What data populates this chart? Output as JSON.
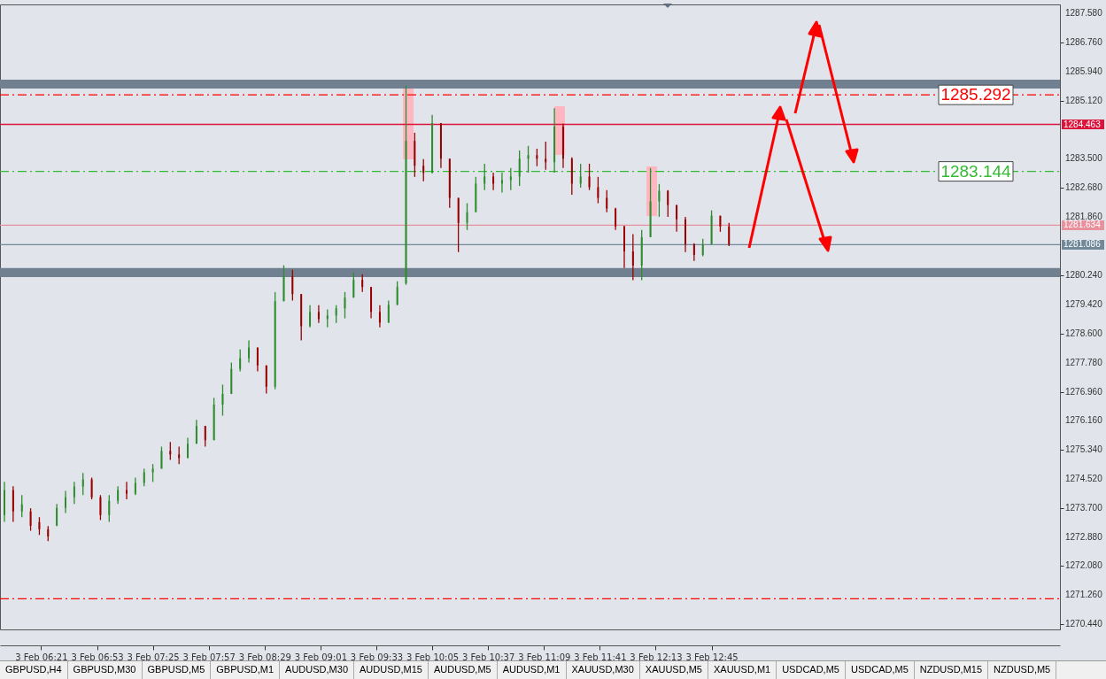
{
  "chart_data": {
    "type": "candlestick",
    "x": [
      "--02-03T06:00",
      "--02-03T06:05",
      "--02-03T06:10",
      "--02-03T06:15",
      "--02-03T06:20",
      "--02-03T06:25",
      "--02-03T06:30",
      "--02-03T06:35",
      "--02-03T06:40",
      "--02-03T06:45",
      "--02-03T06:50",
      "--02-03T06:55",
      "--02-03T07:00",
      "--02-03T07:05",
      "--02-03T07:10",
      "--02-03T07:15",
      "--02-03T07:20",
      "--02-03T07:25",
      "--02-03T07:30",
      "--02-03T07:35",
      "--02-03T07:40",
      "--02-03T07:45",
      "--02-03T07:50",
      "--02-03T07:55",
      "--02-03T08:00",
      "--02-03T08:05",
      "--02-03T08:10",
      "--02-03T08:15",
      "--02-03T08:20",
      "--02-03T08:25",
      "--02-03T08:30",
      "--02-03T08:35",
      "--02-03T08:40",
      "--02-03T08:45",
      "--02-03T08:50",
      "--02-03T08:55",
      "--02-03T09:00",
      "--02-03T09:05",
      "--02-03T09:10",
      "--02-03T09:15",
      "--02-03T09:20",
      "--02-03T09:25",
      "--02-03T09:30",
      "--02-03T09:35",
      "--02-03T09:40",
      "--02-03T09:45",
      "--02-03T09:50",
      "--02-03T09:55",
      "--02-03T10:00",
      "--02-03T10:05",
      "--02-03T10:10",
      "--02-03T10:15",
      "--02-03T10:20",
      "--02-03T10:25",
      "--02-03T10:30",
      "--02-03T10:35",
      "--02-03T10:40",
      "--02-03T10:45",
      "--02-03T10:50",
      "--02-03T10:55",
      "--02-03T11:00",
      "--02-03T11:05",
      "--02-03T11:10",
      "--02-03T11:15",
      "--02-03T11:20",
      "--02-03T11:25",
      "--02-03T11:30",
      "--02-03T11:35",
      "--02-03T11:40",
      "--02-03T11:45",
      "--02-03T11:50",
      "--02-03T11:55",
      "--02-03T12:00",
      "--02-03T12:05",
      "--02-03T12:10",
      "--02-03T12:15",
      "--02-03T12:20",
      "--02-03T12:25",
      "--02-03T12:30",
      "--02-03T12:35",
      "--02-03T12:40",
      "--02-03T12:45",
      "--02-03T12:50",
      "--02-03T12:55"
    ],
    "ohlc": [
      [
        1273.5,
        1274.43,
        1273.31,
        1274.2
      ],
      [
        1274.2,
        1274.31,
        1273.31,
        1273.6
      ],
      [
        1273.6,
        1274.06,
        1273.44,
        1273.8
      ],
      [
        1273.6,
        1273.69,
        1273.06,
        1273.2
      ],
      [
        1273.3,
        1273.44,
        1272.94,
        1273.1
      ],
      [
        1273.1,
        1273.19,
        1272.77,
        1272.9
      ],
      [
        1273.2,
        1273.81,
        1273.19,
        1273.7
      ],
      [
        1273.7,
        1274.18,
        1273.56,
        1274.0
      ],
      [
        1274.0,
        1274.43,
        1273.81,
        1274.3
      ],
      [
        1274.3,
        1274.68,
        1274.06,
        1274.5
      ],
      [
        1274.5,
        1274.55,
        1273.94,
        1274.0
      ],
      [
        1274.0,
        1274.06,
        1273.36,
        1273.5
      ],
      [
        1273.5,
        1274.06,
        1273.31,
        1273.9
      ],
      [
        1273.9,
        1274.31,
        1273.81,
        1274.2
      ],
      [
        1274.2,
        1274.43,
        1273.94,
        1274.1
      ],
      [
        1274.1,
        1274.55,
        1274.06,
        1274.4
      ],
      [
        1274.4,
        1274.8,
        1274.31,
        1274.7
      ],
      [
        1274.7,
        1274.93,
        1274.43,
        1274.8
      ],
      [
        1274.8,
        1275.42,
        1274.8,
        1275.3
      ],
      [
        1275.3,
        1275.55,
        1275.05,
        1275.2
      ],
      [
        1275.2,
        1275.42,
        1274.93,
        1275.1
      ],
      [
        1275.1,
        1275.67,
        1275.1,
        1275.5
      ],
      [
        1275.5,
        1276.17,
        1275.5,
        1276.0
      ],
      [
        1276.0,
        1276.0,
        1275.42,
        1275.6
      ],
      [
        1275.6,
        1276.79,
        1275.6,
        1276.6
      ],
      [
        1276.6,
        1277.16,
        1276.29,
        1276.9
      ],
      [
        1276.9,
        1277.78,
        1276.9,
        1277.6
      ],
      [
        1277.6,
        1278.15,
        1277.53,
        1277.9
      ],
      [
        1277.9,
        1278.4,
        1277.78,
        1278.2
      ],
      [
        1278.2,
        1278.2,
        1277.53,
        1277.7
      ],
      [
        1277.7,
        1277.7,
        1276.91,
        1277.1
      ],
      [
        1277.1,
        1279.76,
        1277.03,
        1279.5
      ],
      [
        1279.5,
        1280.51,
        1279.5,
        1280.2
      ],
      [
        1280.2,
        1280.38,
        1279.52,
        1279.7
      ],
      [
        1279.7,
        1279.7,
        1278.4,
        1278.8
      ],
      [
        1278.8,
        1279.39,
        1278.77,
        1279.2
      ],
      [
        1279.2,
        1279.39,
        1278.89,
        1279.0
      ],
      [
        1279.0,
        1279.27,
        1278.77,
        1279.1
      ],
      [
        1279.1,
        1279.39,
        1278.89,
        1279.3
      ],
      [
        1279.3,
        1279.76,
        1279.02,
        1279.6
      ],
      [
        1279.6,
        1280.31,
        1279.6,
        1280.1
      ],
      [
        1280.1,
        1280.26,
        1279.76,
        1279.9
      ],
      [
        1279.9,
        1279.9,
        1279.02,
        1279.2
      ],
      [
        1279.2,
        1279.39,
        1278.77,
        1278.9
      ],
      [
        1278.9,
        1279.52,
        1278.89,
        1279.4
      ],
      [
        1279.4,
        1280.06,
        1279.39,
        1279.9
      ],
      [
        1280.0,
        1285.55,
        1279.96,
        1284.0
      ],
      [
        1284.0,
        1284.23,
        1282.99,
        1283.3
      ],
      [
        1283.3,
        1283.49,
        1282.87,
        1283.1
      ],
      [
        1283.1,
        1284.73,
        1283.1,
        1284.5
      ],
      [
        1284.5,
        1284.5,
        1283.24,
        1283.5
      ],
      [
        1283.5,
        1283.5,
        1282.12,
        1282.4
      ],
      [
        1282.4,
        1282.4,
        1280.88,
        1281.7
      ],
      [
        1281.7,
        1282.25,
        1281.5,
        1282.0
      ],
      [
        1282.0,
        1282.99,
        1282.0,
        1282.8
      ],
      [
        1282.8,
        1283.36,
        1282.62,
        1283.0
      ],
      [
        1283.0,
        1283.11,
        1282.62,
        1282.8
      ],
      [
        1282.8,
        1283.11,
        1282.55,
        1282.9
      ],
      [
        1282.9,
        1283.24,
        1282.62,
        1283.0
      ],
      [
        1283.0,
        1283.73,
        1282.74,
        1283.5
      ],
      [
        1283.5,
        1283.86,
        1283.11,
        1283.6
      ],
      [
        1283.6,
        1283.78,
        1283.29,
        1283.5
      ],
      [
        1283.5,
        1283.98,
        1283.19,
        1283.4
      ],
      [
        1283.4,
        1284.92,
        1283.11,
        1284.4
      ],
      [
        1284.4,
        1284.48,
        1283.24,
        1283.5
      ],
      [
        1283.5,
        1283.54,
        1282.49,
        1282.8
      ],
      [
        1282.8,
        1283.36,
        1282.69,
        1283.0
      ],
      [
        1283.0,
        1283.36,
        1282.62,
        1282.7
      ],
      [
        1282.7,
        1282.99,
        1282.25,
        1282.4
      ],
      [
        1282.4,
        1282.62,
        1282.0,
        1282.1
      ],
      [
        1282.1,
        1282.12,
        1281.5,
        1281.6
      ],
      [
        1281.6,
        1281.62,
        1280.43,
        1280.9
      ],
      [
        1280.9,
        1281.38,
        1280.09,
        1280.5
      ],
      [
        1280.5,
        1281.5,
        1280.09,
        1281.3
      ],
      [
        1281.3,
        1283.24,
        1281.3,
        1282.3
      ],
      [
        1282.3,
        1282.79,
        1281.87,
        1282.6
      ],
      [
        1282.6,
        1282.62,
        1281.87,
        1282.2
      ],
      [
        1282.2,
        1282.2,
        1281.45,
        1281.8
      ],
      [
        1281.8,
        1281.87,
        1280.88,
        1281.1
      ],
      [
        1281.1,
        1281.13,
        1280.63,
        1280.8
      ],
      [
        1280.8,
        1281.25,
        1280.76,
        1281.1
      ],
      [
        1281.1,
        1282.05,
        1281.1,
        1281.9
      ],
      [
        1281.9,
        1281.9,
        1281.45,
        1281.6
      ],
      [
        1281.6,
        1281.7,
        1281.05,
        1281.1
      ]
    ],
    "colors": [
      "#2e8b2e",
      "#990000",
      "#2e8b2e",
      "#990000",
      "#990000",
      "#990000",
      "#2e8b2e",
      "#2e8b2e",
      "#2e8b2e",
      "#2e8b2e",
      "#990000",
      "#990000",
      "#2e8b2e",
      "#2e8b2e",
      "#990000",
      "#2e8b2e",
      "#2e8b2e",
      "#2e8b2e",
      "#2e8b2e",
      "#990000",
      "#990000",
      "#2e8b2e",
      "#2e8b2e",
      "#990000",
      "#2e8b2e",
      "#2e8b2e",
      "#2e8b2e",
      "#2e8b2e",
      "#2e8b2e",
      "#990000",
      "#990000",
      "#2e8b2e",
      "#2e8b2e",
      "#990000",
      "#990000",
      "#2e8b2e",
      "#990000",
      "#2e8b2e",
      "#2e8b2e",
      "#2e8b2e",
      "#2e8b2e",
      "#990000",
      "#990000",
      "#990000",
      "#2e8b2e",
      "#2e8b2e",
      "#2e8b2e",
      "#990000",
      "#990000",
      "#2e8b2e",
      "#990000",
      "#990000",
      "#990000",
      "#2e8b2e",
      "#2e8b2e",
      "#2e8b2e",
      "#990000",
      "#2e8b2e",
      "#2e8b2e",
      "#2e8b2e",
      "#2e8b2e",
      "#990000",
      "#990000",
      "#2e8b2e",
      "#990000",
      "#990000",
      "#2e8b2e",
      "#990000",
      "#990000",
      "#990000",
      "#990000",
      "#990000",
      "#990000",
      "#2e8b2e",
      "#2e8b2e",
      "#2e8b2e",
      "#990000",
      "#990000",
      "#990000",
      "#990000",
      "#2e8b2e",
      "#2e8b2e",
      "#990000",
      "#990000"
    ],
    "xlim": [
      "--02-03T06:00",
      "--02-03T16:02"
    ],
    "xticks": [
      {
        "value": "--02-03T06:21",
        "label": "3 Feb 06:21"
      },
      {
        "value": "--02-03T06:53",
        "label": "3 Feb 06:53"
      },
      {
        "value": "--02-03T07:25",
        "label": "3 Feb 07:25"
      },
      {
        "value": "--02-03T07:57",
        "label": "3 Feb 07:57"
      },
      {
        "value": "--02-03T08:29",
        "label": "3 Feb 08:29"
      },
      {
        "value": "--02-03T09:01",
        "label": "3 Feb 09:01"
      },
      {
        "value": "--02-03T09:33",
        "label": "3 Feb 09:33"
      },
      {
        "value": "--02-03T10:05",
        "label": "3 Feb 10:05"
      },
      {
        "value": "--02-03T10:37",
        "label": "3 Feb 10:37"
      },
      {
        "value": "--02-03T11:09",
        "label": "3 Feb 11:09"
      },
      {
        "value": "--02-03T11:41",
        "label": "3 Feb 11:41"
      },
      {
        "value": "--02-03T12:13",
        "label": "3 Feb 12:13"
      },
      {
        "value": "--02-03T12:45",
        "label": "3 Feb 12:45"
      }
    ],
    "ylim": [
      1270.29,
      1287.83
    ],
    "yticks": [
      {
        "value": 1270.44,
        "label": "1270.440"
      },
      {
        "value": 1271.26,
        "label": "1271.260"
      },
      {
        "value": 1272.08,
        "label": "1272.080"
      },
      {
        "value": 1272.88,
        "label": "1272.880"
      },
      {
        "value": 1273.7,
        "label": "1273.700"
      },
      {
        "value": 1274.52,
        "label": "1274.520"
      },
      {
        "value": 1275.34,
        "label": "1275.340"
      },
      {
        "value": 1276.16,
        "label": "1276.160"
      },
      {
        "value": 1276.96,
        "label": "1276.960"
      },
      {
        "value": 1277.78,
        "label": "1277.780"
      },
      {
        "value": 1278.6,
        "label": "1278.600"
      },
      {
        "value": 1279.42,
        "label": "1279.420"
      },
      {
        "value": 1280.24,
        "label": "1280.240"
      },
      {
        "value": 1281.86,
        "label": "1281.860"
      },
      {
        "value": 1282.68,
        "label": "1282.680"
      },
      {
        "value": 1283.5,
        "label": "1283.500"
      },
      {
        "value": 1285.12,
        "label": "1285.120"
      },
      {
        "value": 1285.94,
        "label": "1285.940"
      },
      {
        "value": 1286.76,
        "label": "1286.760"
      },
      {
        "value": 1287.58,
        "label": "1287.580"
      }
    ],
    "bands": [
      {
        "axis": "y",
        "from": 1285.47,
        "to": 1285.72,
        "color": "#708090"
      },
      {
        "axis": "y",
        "from": 1280.18,
        "to": 1280.43,
        "color": "#708090"
      }
    ],
    "ref_lines": [
      {
        "axis": "y",
        "value": 1284.463,
        "label": "1284.463",
        "color": "#dc143c",
        "line_style": "solid"
      },
      {
        "axis": "y",
        "value": 1281.634,
        "label": "1281.634",
        "color": "#e8909c",
        "line_style": "solid"
      },
      {
        "axis": "y",
        "value": 1281.086,
        "label": "1281.086",
        "color": "#708898",
        "line_style": "solid"
      },
      {
        "axis": "y",
        "value": 1285.292,
        "label": "1285.292",
        "color": "#ff0000",
        "line_style": "dashed"
      },
      {
        "axis": "y",
        "value": 1283.144,
        "label": "1283.144",
        "color": "#33bb33",
        "line_style": "dashed"
      },
      {
        "axis": "y",
        "value": 1271.15,
        "color": "#ff0000",
        "line_style": "dashed"
      }
    ],
    "annotations": [
      "GBPUSD,H4",
      "GBPUSD,M30",
      "GBPUSD,M5",
      "GBPUSD,M1",
      "AUDUSD,M30",
      "AUDUSD,M15",
      "AUDUSD,M5",
      "AUDUSD,M1",
      "XAUUSD,M30",
      "XAUUSD,M5",
      "XAUUSD,M1",
      "USDCAD,M5",
      "USDCAD,M5",
      "NZDUSD,M15",
      "NZDUSD,M5"
    ]
  }
}
